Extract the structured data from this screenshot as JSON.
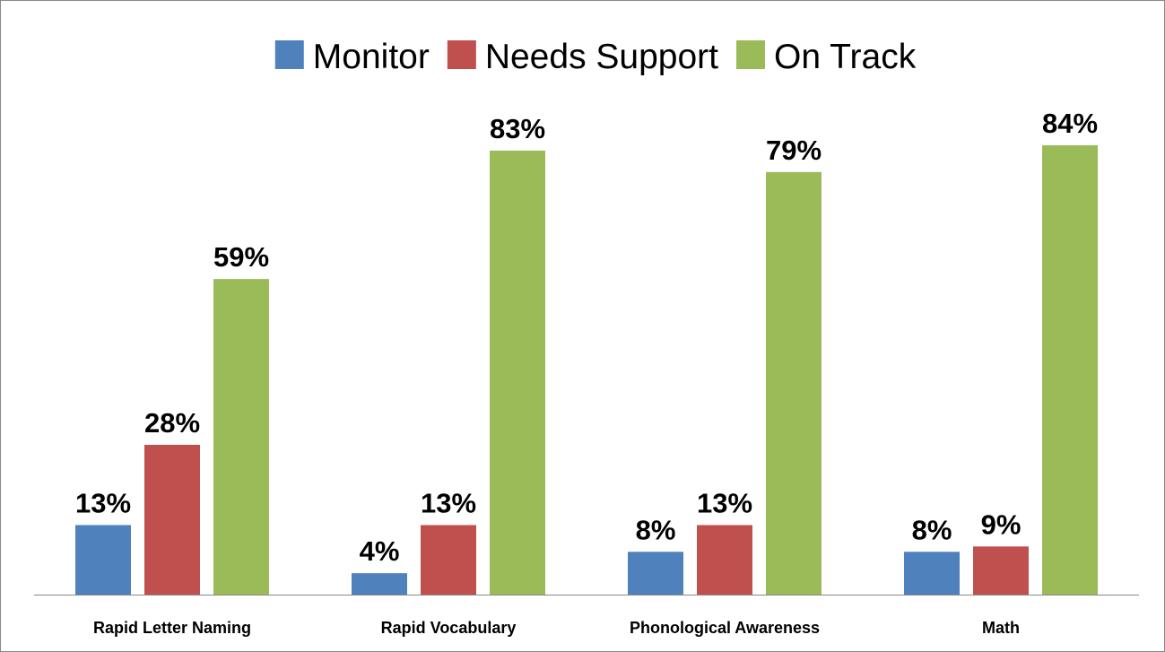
{
  "chart_data": {
    "type": "bar",
    "categories": [
      "Rapid Letter Naming",
      "Rapid Vocabulary",
      "Phonological Awareness",
      "Math"
    ],
    "series": [
      {
        "name": "Monitor",
        "color": "#4f81bd",
        "values": [
          13,
          4,
          8,
          8
        ],
        "value_labels": [
          "13%",
          "4%",
          "8%",
          "8%"
        ]
      },
      {
        "name": "Needs Support",
        "color": "#c0504d",
        "values": [
          28,
          13,
          13,
          9
        ],
        "value_labels": [
          "28%",
          "13%",
          "13%",
          "9%"
        ]
      },
      {
        "name": "On Track",
        "color": "#9bbb59",
        "values": [
          59,
          83,
          79,
          84
        ],
        "value_labels": [
          "59%",
          "83%",
          "79%",
          "84%"
        ]
      }
    ],
    "legend": "top"
  }
}
